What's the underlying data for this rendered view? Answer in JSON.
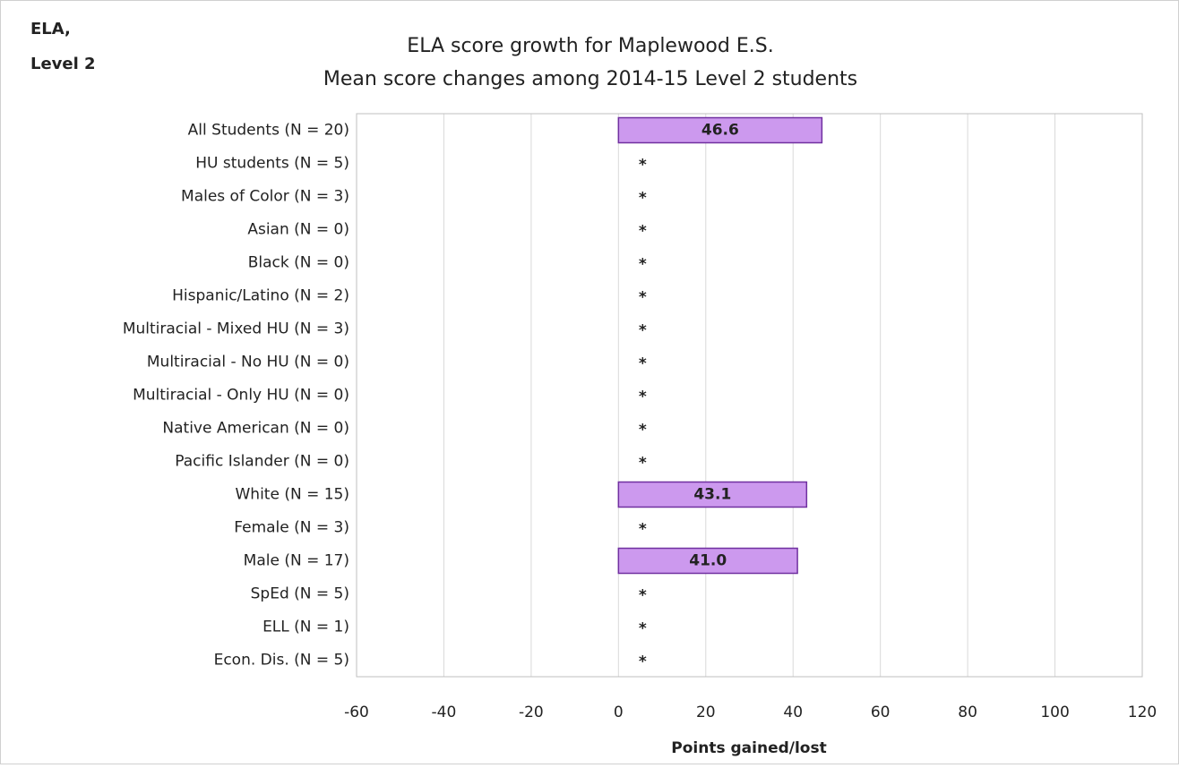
{
  "chart_data": {
    "type": "barh",
    "corner_label": [
      "ELA,",
      "Level 2"
    ],
    "title": "ELA score growth for Maplewood E.S.",
    "subtitle": "Mean score changes among 2014-15 Level 2 students",
    "xlabel": "Points gained/lost",
    "categories": [
      "All Students (N = 20)",
      "HU students (N = 5)",
      "Males of Color (N = 3)",
      "Asian (N = 0)",
      "Black (N = 0)",
      "Hispanic/Latino (N = 2)",
      "Multiracial - Mixed HU (N = 3)",
      "Multiracial - No HU (N = 0)",
      "Multiracial - Only HU (N = 0)",
      "Native American (N = 0)",
      "Pacific Islander (N = 0)",
      "White (N = 15)",
      "Female (N = 3)",
      "Male (N = 17)",
      "SpEd (N = 5)",
      "ELL (N = 1)",
      "Econ. Dis. (N = 5)"
    ],
    "values": [
      46.6,
      null,
      null,
      null,
      null,
      null,
      null,
      null,
      null,
      null,
      null,
      43.1,
      null,
      41.0,
      null,
      null,
      null
    ],
    "value_labels": [
      "46.6",
      "*",
      "*",
      "*",
      "*",
      "*",
      "*",
      "*",
      "*",
      "*",
      "*",
      "43.1",
      "*",
      "41.0",
      "*",
      "*",
      "*"
    ],
    "color": "#cc99ee",
    "edge_color": "#7030a0",
    "xlim": [
      -60,
      120
    ],
    "xticks": [
      -60,
      -40,
      -20,
      0,
      20,
      40,
      60,
      80,
      100,
      120
    ],
    "grid": true
  }
}
